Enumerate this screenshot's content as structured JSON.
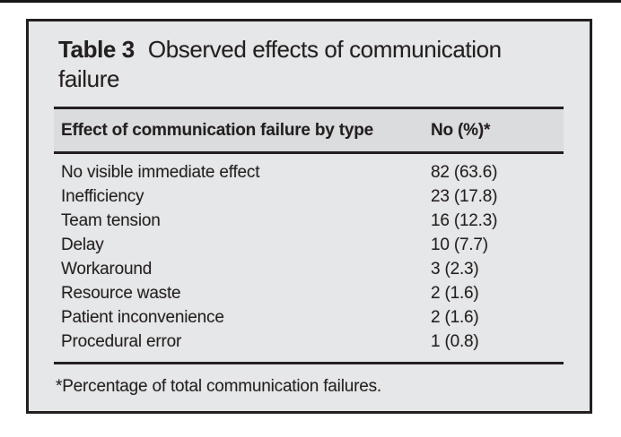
{
  "page": {
    "background_color": "#ffffff",
    "top_rule_color": "#161616"
  },
  "card": {
    "background_color": "#e6e7e8",
    "border_color": "#231f20",
    "header_band_color": "#dbdcde",
    "ink_color": "#231f20",
    "title_label": "Table 3",
    "title_text": "Observed effects of communication failure",
    "footnote": "*Percentage of total communication failures."
  },
  "table": {
    "columns": [
      "Effect of communication failure by type",
      "No (%)*"
    ],
    "rows": [
      {
        "effect": "No visible immediate effect",
        "no_pct": "82 (63.6)"
      },
      {
        "effect": "Inefficiency",
        "no_pct": "23 (17.8)"
      },
      {
        "effect": "Team tension",
        "no_pct": "16 (12.3)"
      },
      {
        "effect": "Delay",
        "no_pct": "10 (7.7)"
      },
      {
        "effect": "Workaround",
        "no_pct": "3 (2.3)"
      },
      {
        "effect": "Resource waste",
        "no_pct": "2 (1.6)"
      },
      {
        "effect": "Patient inconvenience",
        "no_pct": "2 (1.6)"
      },
      {
        "effect": "Procedural error",
        "no_pct": "1 (0.8)"
      }
    ]
  },
  "chart_data": {
    "type": "table",
    "title": "Table 3 Observed effects of communication failure",
    "columns": [
      "Effect of communication failure by type",
      "No (%)*"
    ],
    "categories": [
      "No visible immediate effect",
      "Inefficiency",
      "Team tension",
      "Delay",
      "Workaround",
      "Resource waste",
      "Patient inconvenience",
      "Procedural error"
    ],
    "counts": [
      82,
      23,
      16,
      10,
      3,
      2,
      2,
      1
    ],
    "percentages": [
      63.6,
      17.8,
      12.3,
      7.7,
      2.3,
      1.6,
      1.6,
      0.8
    ],
    "footnote": "*Percentage of total communication failures."
  }
}
